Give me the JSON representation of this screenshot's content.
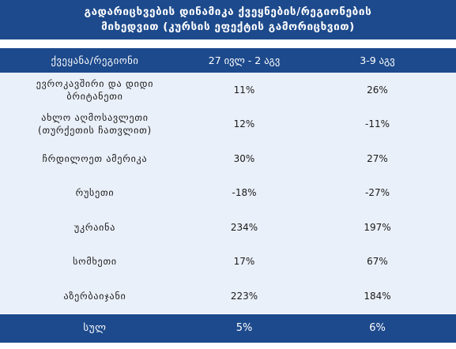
{
  "title": "გადარიცხვების დინამიკა ქვეყნების/რეგიონების\nმიხედვით (კურსის ეფექტის გამორიცხვით)",
  "columns": [
    "ქვეყანა/რეგიონი",
    "27 ივლ - 2 აგვ",
    "3-9 აგვ"
  ],
  "rows": [
    {
      "region": "ევროკავშირი და დიდი\nბრიტანეთი",
      "week1": "11%",
      "week2": "26%"
    },
    {
      "region": "ახლო აღმოსავლეთი\n(თურქეთის ჩათვლით)",
      "week1": "12%",
      "week2": "-11%"
    },
    {
      "region": "ჩრდილოეთ ამერიკა",
      "week1": "30%",
      "week2": "27%"
    },
    {
      "region": "რუსეთი",
      "week1": "-18%",
      "week2": "-27%"
    },
    {
      "region": "უკრაინა",
      "week1": "234%",
      "week2": "197%"
    },
    {
      "region": "სომხეთი",
      "week1": "17%",
      "week2": "67%"
    },
    {
      "region": "აზერბაიჯანი",
      "week1": "223%",
      "week2": "184%"
    }
  ],
  "total": {
    "region": "სულ",
    "week1": "5%",
    "week2": "6%"
  }
}
